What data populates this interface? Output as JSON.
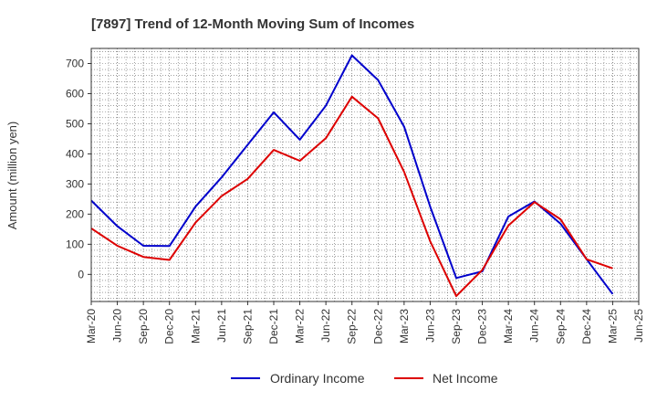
{
  "chart_data": {
    "type": "line",
    "title": "[7897]  Trend of 12-Month Moving Sum of Incomes",
    "xlabel": "",
    "ylabel": "Amount (million yen)",
    "ylim": [
      -90,
      750
    ],
    "yticks": [
      0,
      100,
      200,
      300,
      400,
      500,
      600,
      700
    ],
    "categories": [
      "Mar-20",
      "Jun-20",
      "Sep-20",
      "Dec-20",
      "Mar-21",
      "Jun-21",
      "Sep-21",
      "Dec-21",
      "Mar-22",
      "Jun-22",
      "Sep-22",
      "Dec-22",
      "Mar-23",
      "Jun-23",
      "Sep-23",
      "Dec-23",
      "Mar-24",
      "Jun-24",
      "Sep-24",
      "Dec-24",
      "Mar-25",
      "Jun-25"
    ],
    "grid": true,
    "legend_position": "bottom",
    "series": [
      {
        "name": "Ordinary Income",
        "color": "#0000cc",
        "values": [
          245,
          160,
          95,
          94,
          225,
          322,
          430,
          538,
          447,
          560,
          727,
          645,
          490,
          225,
          -12,
          10,
          192,
          242,
          168,
          50,
          -65,
          null
        ]
      },
      {
        "name": "Net Income",
        "color": "#dd0000",
        "values": [
          153,
          95,
          58,
          48,
          172,
          260,
          317,
          413,
          377,
          452,
          590,
          518,
          340,
          110,
          -72,
          15,
          162,
          240,
          183,
          50,
          20,
          null
        ]
      }
    ]
  }
}
